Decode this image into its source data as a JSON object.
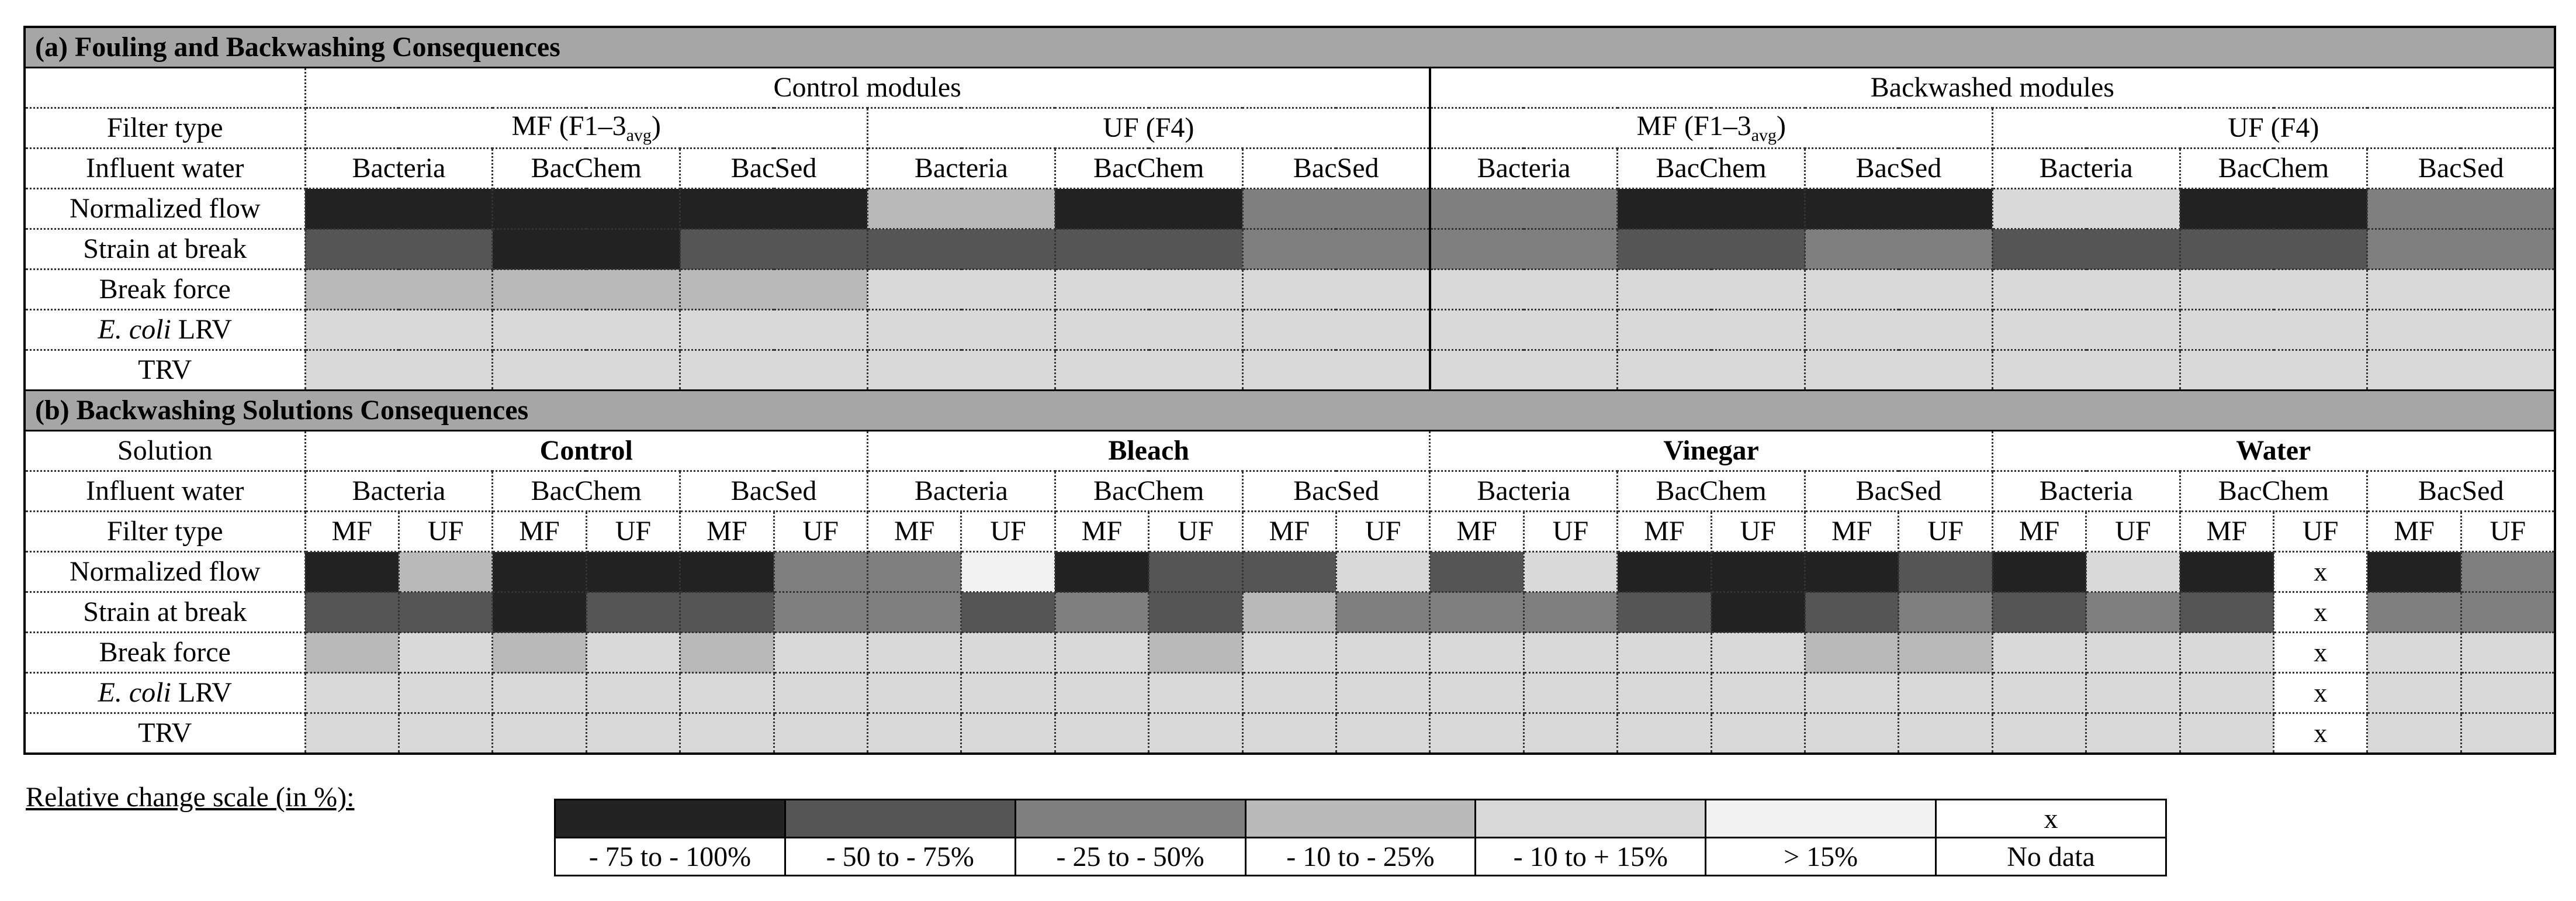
{
  "palette": {
    "c1": "#222222",
    "c2": "#555555",
    "c3": "#7f7f7f",
    "c4": "#b9b9b9",
    "c5": "#d9d9d9",
    "c6": "#f2f2f2",
    "nd": "#ffffff"
  },
  "partA": {
    "title": "(a) Fouling and Backwashing Consequences",
    "groups": [
      "Control modules",
      "Backwashed modules"
    ],
    "filter_label": "Filter type",
    "filters": [
      {
        "main": "MF (F1–3",
        "sub": "avg",
        "close": ")"
      },
      {
        "main": "UF (F4)",
        "sub": "",
        "close": ""
      },
      {
        "main": "MF (F1–3",
        "sub": "avg",
        "close": ")"
      },
      {
        "main": "UF (F4)",
        "sub": "",
        "close": ""
      }
    ],
    "influent_label": "Influent water",
    "influents": [
      "Bacteria",
      "BacChem",
      "BacSed",
      "Bacteria",
      "BacChem",
      "BacSed",
      "Bacteria",
      "BacChem",
      "BacSed",
      "Bacteria",
      "BacChem",
      "BacSed"
    ],
    "rows": [
      {
        "label": "Normalized flow",
        "italic": "",
        "cells": [
          "c1",
          "c1",
          "c1",
          "c4",
          "c1",
          "c3",
          "c3",
          "c1",
          "c1",
          "c5",
          "c1",
          "c3"
        ]
      },
      {
        "label": "Strain at break",
        "italic": "",
        "cells": [
          "c2",
          "c1",
          "c2",
          "c2",
          "c2",
          "c3",
          "c3",
          "c2",
          "c3",
          "c2",
          "c2",
          "c3"
        ]
      },
      {
        "label": "Break force",
        "italic": "",
        "cells": [
          "c4",
          "c4",
          "c4",
          "c5",
          "c5",
          "c5",
          "c5",
          "c5",
          "c5",
          "c5",
          "c5",
          "c5"
        ]
      },
      {
        "label": " LRV",
        "italic": "E. coli",
        "cells": [
          "c5",
          "c5",
          "c5",
          "c5",
          "c5",
          "c5",
          "c5",
          "c5",
          "c5",
          "c5",
          "c5",
          "c5"
        ]
      },
      {
        "label": "TRV",
        "italic": "",
        "cells": [
          "c5",
          "c5",
          "c5",
          "c5",
          "c5",
          "c5",
          "c5",
          "c5",
          "c5",
          "c5",
          "c5",
          "c5"
        ]
      }
    ]
  },
  "partB": {
    "title": "(b) Backwashing Solutions Consequences",
    "solution_label": "Solution",
    "solutions": [
      "Control",
      "Bleach",
      "Vinegar",
      "Water"
    ],
    "influent_label": "Influent water",
    "influents": [
      "Bacteria",
      "BacChem",
      "BacSed",
      "Bacteria",
      "BacChem",
      "BacSed",
      "Bacteria",
      "BacChem",
      "BacSed",
      "Bacteria",
      "BacChem",
      "BacSed"
    ],
    "filter_label": "Filter type",
    "filters": [
      "MF",
      "UF",
      "MF",
      "UF",
      "MF",
      "UF",
      "MF",
      "UF",
      "MF",
      "UF",
      "MF",
      "UF",
      "MF",
      "UF",
      "MF",
      "UF",
      "MF",
      "UF",
      "MF",
      "UF",
      "MF",
      "UF",
      "MF",
      "UF"
    ],
    "rows": [
      {
        "label": "Normalized flow",
        "italic": "",
        "cells": [
          "c1",
          "c4",
          "c1",
          "c1",
          "c1",
          "c3",
          "c3",
          "c6",
          "c1",
          "c2",
          "c2",
          "c5",
          "c2",
          "c5",
          "c1",
          "c1",
          "c1",
          "c2",
          "c1",
          "c5",
          "c1",
          "nd",
          "c1",
          "c3"
        ]
      },
      {
        "label": "Strain at break",
        "italic": "",
        "cells": [
          "c2",
          "c2",
          "c1",
          "c2",
          "c2",
          "c3",
          "c3",
          "c2",
          "c3",
          "c2",
          "c4",
          "c3",
          "c3",
          "c3",
          "c2",
          "c1",
          "c2",
          "c3",
          "c2",
          "c3",
          "c2",
          "nd",
          "c3",
          "c3"
        ]
      },
      {
        "label": "Break force",
        "italic": "",
        "cells": [
          "c4",
          "c5",
          "c4",
          "c5",
          "c4",
          "c5",
          "c5",
          "c5",
          "c5",
          "c4",
          "c5",
          "c5",
          "c5",
          "c5",
          "c5",
          "c5",
          "c4",
          "c4",
          "c5",
          "c5",
          "c5",
          "nd",
          "c5",
          "c5"
        ]
      },
      {
        "label": " LRV",
        "italic": "E. coli",
        "cells": [
          "c5",
          "c5",
          "c5",
          "c5",
          "c5",
          "c5",
          "c5",
          "c5",
          "c5",
          "c5",
          "c5",
          "c5",
          "c5",
          "c5",
          "c5",
          "c5",
          "c5",
          "c5",
          "c5",
          "c5",
          "c5",
          "nd",
          "c5",
          "c5"
        ]
      },
      {
        "label": "TRV",
        "italic": "",
        "cells": [
          "c5",
          "c5",
          "c5",
          "c5",
          "c5",
          "c5",
          "c5",
          "c5",
          "c5",
          "c5",
          "c5",
          "c5",
          "c5",
          "c5",
          "c5",
          "c5",
          "c5",
          "c5",
          "c5",
          "c5",
          "c5",
          "nd",
          "c5",
          "c5"
        ]
      }
    ],
    "nodata_mark": "x"
  },
  "legend": {
    "title": "Relative change scale (in %):",
    "items": [
      {
        "code": "c1",
        "label": "- 75 to - 100%"
      },
      {
        "code": "c2",
        "label": "- 50 to - 75%"
      },
      {
        "code": "c3",
        "label": "- 25 to - 50%"
      },
      {
        "code": "c4",
        "label": "- 10 to - 25%"
      },
      {
        "code": "c5",
        "label": "- 10 to + 15%"
      },
      {
        "code": "c6",
        "label": "> 15%"
      },
      {
        "code": "nd",
        "label": "No data",
        "mark": "x"
      }
    ]
  },
  "chart_data": {
    "type": "heatmap",
    "scale": [
      "- 75 to - 100%",
      "- 50 to - 75%",
      "- 25 to - 50%",
      "- 10 to - 25%",
      "- 10 to + 15%",
      "> 15%",
      "No data"
    ],
    "panels": [
      {
        "title": "(a) Fouling and Backwashing Consequences",
        "columns": [
          "Control modules / MF / Bacteria",
          "Control modules / MF / BacChem",
          "Control modules / MF / BacSed",
          "Control modules / UF / Bacteria",
          "Control modules / UF / BacChem",
          "Control modules / UF / BacSed",
          "Backwashed modules / MF / Bacteria",
          "Backwashed modules / MF / BacChem",
          "Backwashed modules / MF / BacSed",
          "Backwashed modules / UF / Bacteria",
          "Backwashed modules / UF / BacChem",
          "Backwashed modules / UF / BacSed"
        ],
        "rows": [
          "Normalized flow",
          "Strain at break",
          "Break force",
          "E. coli LRV",
          "TRV"
        ],
        "values": [
          [
            "- 75 to - 100%",
            "- 75 to - 100%",
            "- 75 to - 100%",
            "- 10 to - 25%",
            "- 75 to - 100%",
            "- 25 to - 50%",
            "- 25 to - 50%",
            "- 75 to - 100%",
            "- 75 to - 100%",
            "- 10 to + 15%",
            "- 75 to - 100%",
            "- 25 to - 50%"
          ],
          [
            "- 50 to - 75%",
            "- 75 to - 100%",
            "- 50 to - 75%",
            "- 50 to - 75%",
            "- 50 to - 75%",
            "- 25 to - 50%",
            "- 25 to - 50%",
            "- 50 to - 75%",
            "- 25 to - 50%",
            "- 50 to - 75%",
            "- 50 to - 75%",
            "- 25 to - 50%"
          ],
          [
            "- 10 to - 25%",
            "- 10 to - 25%",
            "- 10 to - 25%",
            "- 10 to + 15%",
            "- 10 to + 15%",
            "- 10 to + 15%",
            "- 10 to + 15%",
            "- 10 to + 15%",
            "- 10 to + 15%",
            "- 10 to + 15%",
            "- 10 to + 15%",
            "- 10 to + 15%"
          ],
          [
            "- 10 to + 15%",
            "- 10 to + 15%",
            "- 10 to + 15%",
            "- 10 to + 15%",
            "- 10 to + 15%",
            "- 10 to + 15%",
            "- 10 to + 15%",
            "- 10 to + 15%",
            "- 10 to + 15%",
            "- 10 to + 15%",
            "- 10 to + 15%",
            "- 10 to + 15%"
          ],
          [
            "- 10 to + 15%",
            "- 10 to + 15%",
            "- 10 to + 15%",
            "- 10 to + 15%",
            "- 10 to + 15%",
            "- 10 to + 15%",
            "- 10 to + 15%",
            "- 10 to + 15%",
            "- 10 to + 15%",
            "- 10 to + 15%",
            "- 10 to + 15%",
            "- 10 to + 15%"
          ]
        ]
      },
      {
        "title": "(b) Backwashing Solutions Consequences",
        "columns": [
          "Control / Bacteria / MF",
          "Control / Bacteria / UF",
          "Control / BacChem / MF",
          "Control / BacChem / UF",
          "Control / BacSed / MF",
          "Control / BacSed / UF",
          "Bleach / Bacteria / MF",
          "Bleach / Bacteria / UF",
          "Bleach / BacChem / MF",
          "Bleach / BacChem / UF",
          "Bleach / BacSed / MF",
          "Bleach / BacSed / UF",
          "Vinegar / Bacteria / MF",
          "Vinegar / Bacteria / UF",
          "Vinegar / BacChem / MF",
          "Vinegar / BacChem / UF",
          "Vinegar / BacSed / MF",
          "Vinegar / BacSed / UF",
          "Water / Bacteria / MF",
          "Water / Bacteria / UF",
          "Water / BacChem / MF",
          "Water / BacChem / UF",
          "Water / BacSed / MF",
          "Water / BacSed / UF"
        ],
        "rows": [
          "Normalized flow",
          "Strain at break",
          "Break force",
          "E. coli LRV",
          "TRV"
        ],
        "values": [
          [
            "- 75 to - 100%",
            "- 10 to - 25%",
            "- 75 to - 100%",
            "- 75 to - 100%",
            "- 75 to - 100%",
            "- 25 to - 50%",
            "- 25 to - 50%",
            "> 15%",
            "- 75 to - 100%",
            "- 50 to - 75%",
            "- 50 to - 75%",
            "- 10 to + 15%",
            "- 50 to - 75%",
            "- 10 to + 15%",
            "- 75 to - 100%",
            "- 75 to - 100%",
            "- 75 to - 100%",
            "- 50 to - 75%",
            "- 75 to - 100%",
            "- 10 to + 15%",
            "- 75 to - 100%",
            "No data",
            "- 75 to - 100%",
            "- 25 to - 50%"
          ],
          [
            "- 50 to - 75%",
            "- 50 to - 75%",
            "- 75 to - 100%",
            "- 50 to - 75%",
            "- 50 to - 75%",
            "- 25 to - 50%",
            "- 25 to - 50%",
            "- 50 to - 75%",
            "- 25 to - 50%",
            "- 50 to - 75%",
            "- 10 to - 25%",
            "- 25 to - 50%",
            "- 25 to - 50%",
            "- 25 to - 50%",
            "- 50 to - 75%",
            "- 75 to - 100%",
            "- 50 to - 75%",
            "- 25 to - 50%",
            "- 50 to - 75%",
            "- 25 to - 50%",
            "- 50 to - 75%",
            "No data",
            "- 25 to - 50%",
            "- 25 to - 50%"
          ],
          [
            "- 10 to - 25%",
            "- 10 to + 15%",
            "- 10 to - 25%",
            "- 10 to + 15%",
            "- 10 to - 25%",
            "- 10 to + 15%",
            "- 10 to + 15%",
            "- 10 to + 15%",
            "- 10 to + 15%",
            "- 10 to - 25%",
            "- 10 to + 15%",
            "- 10 to + 15%",
            "- 10 to + 15%",
            "- 10 to + 15%",
            "- 10 to + 15%",
            "- 10 to + 15%",
            "- 10 to - 25%",
            "- 10 to - 25%",
            "- 10 to + 15%",
            "- 10 to + 15%",
            "- 10 to + 15%",
            "No data",
            "- 10 to + 15%",
            "- 10 to + 15%"
          ],
          [
            "- 10 to + 15%",
            "- 10 to + 15%",
            "- 10 to + 15%",
            "- 10 to + 15%",
            "- 10 to + 15%",
            "- 10 to + 15%",
            "- 10 to + 15%",
            "- 10 to + 15%",
            "- 10 to + 15%",
            "- 10 to + 15%",
            "- 10 to + 15%",
            "- 10 to + 15%",
            "- 10 to + 15%",
            "- 10 to + 15%",
            "- 10 to + 15%",
            "- 10 to + 15%",
            "- 10 to + 15%",
            "- 10 to + 15%",
            "- 10 to + 15%",
            "- 10 to + 15%",
            "- 10 to + 15%",
            "No data",
            "- 10 to + 15%",
            "- 10 to + 15%"
          ],
          [
            "- 10 to + 15%",
            "- 10 to + 15%",
            "- 10 to + 15%",
            "- 10 to + 15%",
            "- 10 to + 15%",
            "- 10 to + 15%",
            "- 10 to + 15%",
            "- 10 to + 15%",
            "- 10 to + 15%",
            "- 10 to + 15%",
            "- 10 to + 15%",
            "- 10 to + 15%",
            "- 10 to + 15%",
            "- 10 to + 15%",
            "- 10 to + 15%",
            "- 10 to + 15%",
            "- 10 to + 15%",
            "- 10 to + 15%",
            "- 10 to + 15%",
            "- 10 to + 15%",
            "- 10 to + 15%",
            "No data",
            "- 10 to + 15%",
            "- 10 to + 15%"
          ]
        ]
      }
    ]
  }
}
